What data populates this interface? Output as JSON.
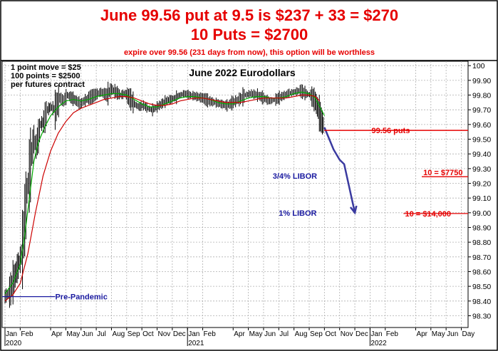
{
  "header": {
    "line1": "June 99.56 put at 9.5 is $237 + 33 = $270",
    "line2": "10 Puts = $2700",
    "line3": "expire over 99.56 (231 days from now), this option will be worthless",
    "color": "#e60000"
  },
  "chart_data": {
    "type": "line",
    "title": "June 2022 Eurodollars",
    "ylim": [
      98.22,
      100.03
    ],
    "y_ticks": [
      98.3,
      98.4,
      98.5,
      98.6,
      98.7,
      98.8,
      98.9,
      99.0,
      99.1,
      99.2,
      99.3,
      99.4,
      99.5,
      99.6,
      99.7,
      99.8,
      99.9,
      100.0
    ],
    "y_tick_labels": [
      "98.30",
      "98.40",
      "98.50",
      "98.60",
      "98.70",
      "98.80",
      "98.90",
      "99.00",
      "99.10",
      "99.20",
      "99.30",
      "99.40",
      "99.50",
      "99.60",
      "99.70",
      "99.80",
      "99.90",
      "100"
    ],
    "x_month_labels": [
      "Jan",
      "Feb",
      "Apr",
      "May",
      "Jun",
      "Jul",
      "Aug",
      "Sep",
      "Oct",
      "Nov",
      "Dec",
      "Jan",
      "Feb",
      "Apr",
      "May",
      "Jun",
      "Jul",
      "Aug",
      "Sep",
      "Oct",
      "Nov",
      "Dec",
      "Jan",
      "Feb",
      "Apr",
      "May",
      "Jun",
      "Day"
    ],
    "x_month_index": [
      0,
      1,
      3,
      4,
      5,
      6,
      7,
      8,
      9,
      10,
      11,
      12,
      13,
      15,
      16,
      17,
      18,
      19,
      20,
      21,
      22,
      23,
      24,
      25,
      27,
      28,
      29,
      30
    ],
    "x_year_labels": [
      {
        "label": "2020",
        "month_index": 0
      },
      {
        "label": "2021",
        "month_index": 12
      },
      {
        "label": "2022",
        "month_index": 24
      }
    ],
    "series": [
      {
        "color": "#000000",
        "style": "price bars",
        "points": [
          [
            0.0,
            98.43
          ],
          [
            0.3,
            98.46
          ],
          [
            0.6,
            98.55
          ],
          [
            0.8,
            98.62
          ],
          [
            1.0,
            98.68
          ],
          [
            1.15,
            98.75
          ],
          [
            1.3,
            98.95
          ],
          [
            1.45,
            99.15
          ],
          [
            1.6,
            99.25
          ],
          [
            1.75,
            99.4
          ],
          [
            1.9,
            99.5
          ],
          [
            2.05,
            99.45
          ],
          [
            2.2,
            99.52
          ],
          [
            2.35,
            99.6
          ],
          [
            2.55,
            99.62
          ],
          [
            2.8,
            99.7
          ],
          [
            3.0,
            99.72
          ],
          [
            3.3,
            99.7
          ],
          [
            3.6,
            99.78
          ],
          [
            3.85,
            99.76
          ],
          [
            4.1,
            99.8
          ],
          [
            4.4,
            99.78
          ],
          [
            4.7,
            99.76
          ],
          [
            4.95,
            99.74
          ],
          [
            5.2,
            99.76
          ],
          [
            5.5,
            99.78
          ],
          [
            5.9,
            99.8
          ],
          [
            6.3,
            99.82
          ],
          [
            6.7,
            99.8
          ],
          [
            7.0,
            99.84
          ],
          [
            7.3,
            99.82
          ],
          [
            7.6,
            99.8
          ],
          [
            7.9,
            99.81
          ],
          [
            8.2,
            99.78
          ],
          [
            8.5,
            99.74
          ],
          [
            8.8,
            99.72
          ],
          [
            9.1,
            99.73
          ],
          [
            9.4,
            99.71
          ],
          [
            9.7,
            99.7
          ],
          [
            10.0,
            99.72
          ],
          [
            10.3,
            99.74
          ],
          [
            10.6,
            99.76
          ],
          [
            10.9,
            99.77
          ],
          [
            11.2,
            99.78
          ],
          [
            11.5,
            99.8
          ],
          [
            11.8,
            99.81
          ],
          [
            12.2,
            99.8
          ],
          [
            12.6,
            99.79
          ],
          [
            13.0,
            99.78
          ],
          [
            13.4,
            99.76
          ],
          [
            13.8,
            99.75
          ],
          [
            14.2,
            99.74
          ],
          [
            14.6,
            99.73
          ],
          [
            15.0,
            99.75
          ],
          [
            15.4,
            99.77
          ],
          [
            15.8,
            99.8
          ],
          [
            16.2,
            99.81
          ],
          [
            16.6,
            99.8
          ],
          [
            17.0,
            99.78
          ],
          [
            17.4,
            99.76
          ],
          [
            17.8,
            99.77
          ],
          [
            18.2,
            99.79
          ],
          [
            18.6,
            99.81
          ],
          [
            19.0,
            99.82
          ],
          [
            19.4,
            99.83
          ],
          [
            19.8,
            99.81
          ],
          [
            20.1,
            99.8
          ],
          [
            20.4,
            99.76
          ],
          [
            20.6,
            99.7
          ],
          [
            20.8,
            99.63
          ],
          [
            21.0,
            99.58
          ]
        ]
      },
      {
        "color": "#00aa00",
        "style": "short moving average",
        "points": [
          [
            0.0,
            98.45
          ],
          [
            0.5,
            98.52
          ],
          [
            1.0,
            98.65
          ],
          [
            1.3,
            98.85
          ],
          [
            1.6,
            99.1
          ],
          [
            1.9,
            99.35
          ],
          [
            2.2,
            99.48
          ],
          [
            2.6,
            99.58
          ],
          [
            3.0,
            99.66
          ],
          [
            3.5,
            99.72
          ],
          [
            4.0,
            99.76
          ],
          [
            4.5,
            99.77
          ],
          [
            5.0,
            99.76
          ],
          [
            5.5,
            99.77
          ],
          [
            6.0,
            99.79
          ],
          [
            6.5,
            99.8
          ],
          [
            7.0,
            99.81
          ],
          [
            7.5,
            99.81
          ],
          [
            8.0,
            99.8
          ],
          [
            8.5,
            99.77
          ],
          [
            9.0,
            99.74
          ],
          [
            9.5,
            99.72
          ],
          [
            10.0,
            99.72
          ],
          [
            10.5,
            99.74
          ],
          [
            11.0,
            99.76
          ],
          [
            11.5,
            99.78
          ],
          [
            12.0,
            99.79
          ],
          [
            12.5,
            99.79
          ],
          [
            13.0,
            99.78
          ],
          [
            13.5,
            99.77
          ],
          [
            14.0,
            99.75
          ],
          [
            14.5,
            99.74
          ],
          [
            15.0,
            99.74
          ],
          [
            15.5,
            99.76
          ],
          [
            16.0,
            99.78
          ],
          [
            16.5,
            99.79
          ],
          [
            17.0,
            99.79
          ],
          [
            17.5,
            99.78
          ],
          [
            18.0,
            99.78
          ],
          [
            18.5,
            99.79
          ],
          [
            19.0,
            99.81
          ],
          [
            19.5,
            99.82
          ],
          [
            20.0,
            99.81
          ],
          [
            20.4,
            99.78
          ],
          [
            20.7,
            99.72
          ],
          [
            21.0,
            99.66
          ]
        ]
      },
      {
        "color": "#cc0000",
        "style": "long moving average",
        "points": [
          [
            0.0,
            98.4
          ],
          [
            0.5,
            98.44
          ],
          [
            1.0,
            98.52
          ],
          [
            1.5,
            98.72
          ],
          [
            2.0,
            99.0
          ],
          [
            2.5,
            99.25
          ],
          [
            3.0,
            99.42
          ],
          [
            3.5,
            99.54
          ],
          [
            4.0,
            99.62
          ],
          [
            4.5,
            99.68
          ],
          [
            5.0,
            99.71
          ],
          [
            5.5,
            99.73
          ],
          [
            6.0,
            99.75
          ],
          [
            6.5,
            99.77
          ],
          [
            7.0,
            99.78
          ],
          [
            7.5,
            99.79
          ],
          [
            8.0,
            99.79
          ],
          [
            8.5,
            99.78
          ],
          [
            9.0,
            99.76
          ],
          [
            9.5,
            99.74
          ],
          [
            10.0,
            99.73
          ],
          [
            10.5,
            99.73
          ],
          [
            11.0,
            99.74
          ],
          [
            11.5,
            99.76
          ],
          [
            12.0,
            99.77
          ],
          [
            12.5,
            99.78
          ],
          [
            13.0,
            99.78
          ],
          [
            13.5,
            99.77
          ],
          [
            14.0,
            99.76
          ],
          [
            14.5,
            99.75
          ],
          [
            15.0,
            99.75
          ],
          [
            15.5,
            99.75
          ],
          [
            16.0,
            99.76
          ],
          [
            16.5,
            99.77
          ],
          [
            17.0,
            99.78
          ],
          [
            17.5,
            99.78
          ],
          [
            18.0,
            99.78
          ],
          [
            18.5,
            99.78
          ],
          [
            19.0,
            99.79
          ],
          [
            19.5,
            99.8
          ],
          [
            20.0,
            99.8
          ],
          [
            20.4,
            99.79
          ],
          [
            20.7,
            99.76
          ]
        ]
      }
    ],
    "projection": {
      "color": "#3a3aa0",
      "points": [
        [
          21.0,
          99.58
        ],
        [
          21.6,
          99.43
        ],
        [
          22.0,
          99.36
        ],
        [
          22.3,
          99.33
        ],
        [
          23.0,
          99.0
        ]
      ]
    },
    "annotations": [
      {
        "text": "1 point move = $25",
        "color": "#000000"
      },
      {
        "text": "100 points = $2500",
        "color": "#000000"
      },
      {
        "text": "per futures contract",
        "color": "#000000"
      },
      {
        "text": "99.56 puts",
        "color": "#e60000",
        "y": 99.56
      },
      {
        "text": "3/4% LIBOR",
        "color": "#1a1aa0",
        "y": 99.25
      },
      {
        "text": "1% LIBOR",
        "color": "#1a1aa0",
        "y": 99.0
      },
      {
        "text": "10 = $7750",
        "color": "#e60000",
        "y": 99.245
      },
      {
        "text": "10 = $14,000",
        "color": "#e60000",
        "y": 98.995
      },
      {
        "text": "Pre-Pandemic",
        "color": "#1a1aa0",
        "y": 98.43
      }
    ]
  }
}
